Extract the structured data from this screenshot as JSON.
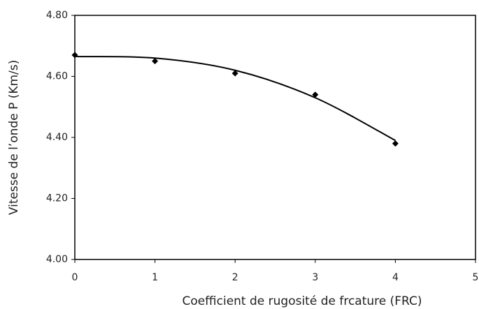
{
  "chart_data": {
    "type": "scatter",
    "x_label": "Coefficient de rugosité de frcature (FRC)",
    "y_label": "Vitesse de l’onde P (Km/s)",
    "x": [
      0,
      1,
      2,
      3,
      4
    ],
    "values": [
      4.67,
      4.65,
      4.61,
      4.54,
      4.38
    ],
    "color": "#000000",
    "trend": {
      "x": [
        0,
        1,
        2,
        3,
        4
      ],
      "values": [
        4.665,
        4.66,
        4.62,
        4.53,
        4.39
      ]
    },
    "xlim": [
      0,
      5
    ],
    "xticks": [
      0,
      1,
      2,
      3,
      4,
      5
    ],
    "ylim": [
      4.0,
      4.8
    ],
    "yticks": [
      {
        "value": 4.0,
        "label": "4.00"
      },
      {
        "value": 4.2,
        "label": "4.20"
      },
      {
        "value": 4.4,
        "label": "4.40"
      },
      {
        "value": 4.6,
        "label": "4.60"
      },
      {
        "value": 4.8,
        "label": "4.80"
      }
    ],
    "grid": false
  }
}
